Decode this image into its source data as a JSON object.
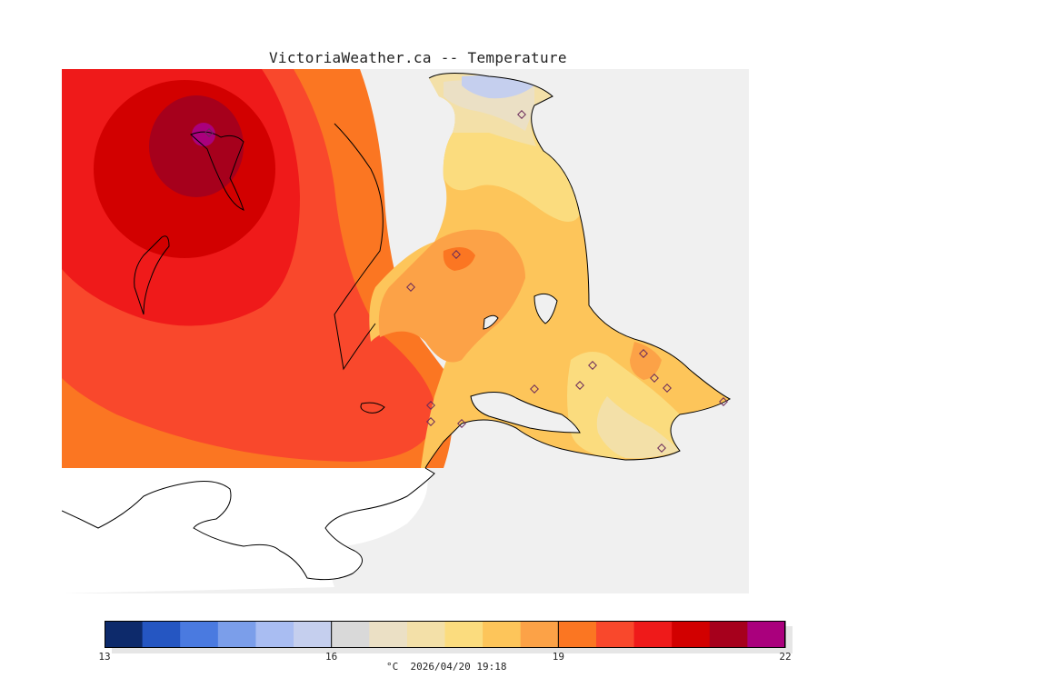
{
  "title": "VictoriaWeather.ca -- Temperature",
  "colorbar": {
    "min": 13,
    "max": 22,
    "ticks": [
      {
        "value": 13,
        "label": "13"
      },
      {
        "value": 16,
        "label": "16"
      },
      {
        "value": 19,
        "label": "19"
      },
      {
        "value": 22,
        "label": "22"
      }
    ],
    "colors": [
      "#0d2a6b",
      "#2556c2",
      "#4a7ae0",
      "#7b9eea",
      "#a9bdf2",
      "#c5cfee",
      "#d9d9d9",
      "#ebe0c5",
      "#f3e0a8",
      "#fbdc7e",
      "#fdc55a",
      "#fca247",
      "#fb7622",
      "#f9482c",
      "#ef1a1a",
      "#d20000",
      "#a6001c",
      "#aa007d"
    ]
  },
  "caption": "°C  2026/04/20 19:18",
  "map": {
    "water_color": "#f0f0f0",
    "coast_color": "#000000",
    "no_data_color": "#ffffff",
    "max_contour_level": 22,
    "stations_count_label": ""
  }
}
